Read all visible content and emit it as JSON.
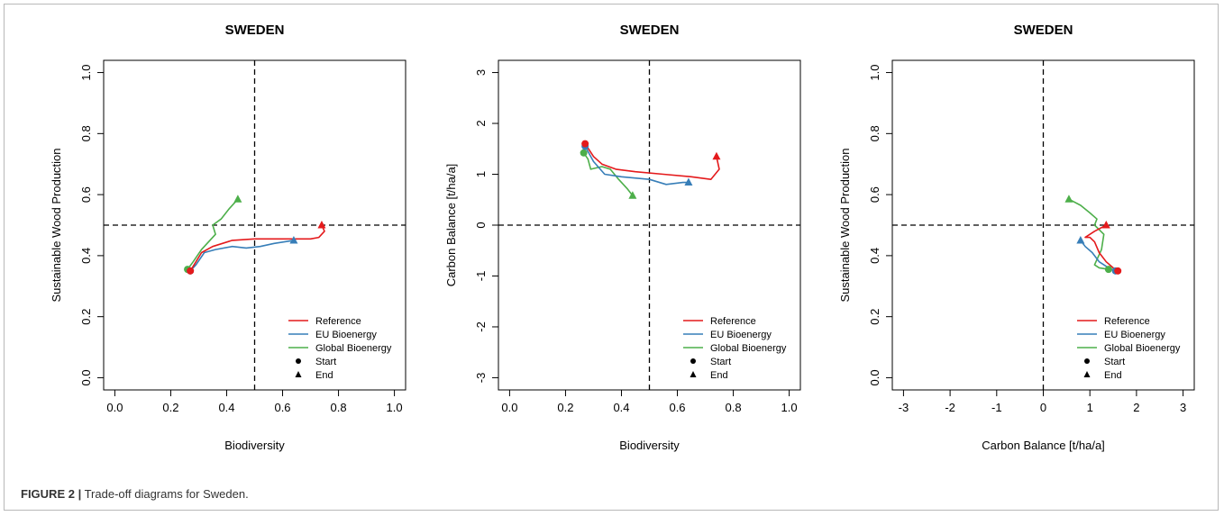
{
  "caption": {
    "label": "FIGURE 2 |",
    "text": "Trade-off diagrams for Sweden."
  },
  "colors": {
    "reference": "#e41a1c",
    "eu_bioenergy": "#377eb8",
    "global_bioenergy": "#4daf4a"
  },
  "legend": {
    "entries": [
      "Reference",
      "EU Bioenergy",
      "Global Bioenergy"
    ],
    "start": "Start",
    "end": "End"
  },
  "chart_data": [
    {
      "type": "line",
      "title": "SWEDEN",
      "xlabel": "Biodiversity",
      "ylabel": "Sustainable Wood Production",
      "xlim": [
        0.0,
        1.0
      ],
      "ylim": [
        0.0,
        1.0
      ],
      "xticks": [
        "0.0",
        "0.2",
        "0.4",
        "0.6",
        "0.8",
        "1.0"
      ],
      "yticks": [
        "0.0",
        "0.2",
        "0.4",
        "0.6",
        "0.8",
        "1.0"
      ],
      "vline": 0.5,
      "hline": 0.5,
      "legend_position": "bottom-right",
      "series": [
        {
          "name": "Reference",
          "color": "#e41a1c",
          "points": [
            [
              0.27,
              0.35
            ],
            [
              0.29,
              0.38
            ],
            [
              0.31,
              0.41
            ],
            [
              0.35,
              0.43
            ],
            [
              0.42,
              0.45
            ],
            [
              0.5,
              0.455
            ],
            [
              0.6,
              0.455
            ],
            [
              0.7,
              0.455
            ],
            [
              0.73,
              0.46
            ],
            [
              0.75,
              0.48
            ],
            [
              0.74,
              0.5
            ]
          ]
        },
        {
          "name": "EU Bioenergy",
          "color": "#377eb8",
          "points": [
            [
              0.27,
              0.35
            ],
            [
              0.29,
              0.37
            ],
            [
              0.32,
              0.41
            ],
            [
              0.36,
              0.42
            ],
            [
              0.42,
              0.43
            ],
            [
              0.47,
              0.425
            ],
            [
              0.52,
              0.43
            ],
            [
              0.57,
              0.44
            ],
            [
              0.64,
              0.45
            ]
          ]
        },
        {
          "name": "Global Bioenergy",
          "color": "#4daf4a",
          "points": [
            [
              0.26,
              0.355
            ],
            [
              0.28,
              0.38
            ],
            [
              0.31,
              0.42
            ],
            [
              0.33,
              0.44
            ],
            [
              0.36,
              0.47
            ],
            [
              0.35,
              0.5
            ],
            [
              0.38,
              0.52
            ],
            [
              0.41,
              0.555
            ],
            [
              0.44,
              0.585
            ]
          ]
        }
      ]
    },
    {
      "type": "line",
      "title": "SWEDEN",
      "xlabel": "Biodiversity",
      "ylabel": "Carbon Balance [t/ha/a]",
      "xlim": [
        0.0,
        1.0
      ],
      "ylim": [
        -3,
        3
      ],
      "xticks": [
        "0.0",
        "0.2",
        "0.4",
        "0.6",
        "0.8",
        "1.0"
      ],
      "yticks": [
        "-3",
        "-2",
        "-1",
        "0",
        "1",
        "2",
        "3"
      ],
      "vline": 0.5,
      "hline": 0,
      "legend_position": "bottom-right",
      "series": [
        {
          "name": "Reference",
          "color": "#e41a1c",
          "points": [
            [
              0.27,
              1.6
            ],
            [
              0.3,
              1.35
            ],
            [
              0.33,
              1.2
            ],
            [
              0.38,
              1.1
            ],
            [
              0.45,
              1.05
            ],
            [
              0.55,
              1.0
            ],
            [
              0.65,
              0.95
            ],
            [
              0.72,
              0.9
            ],
            [
              0.75,
              1.1
            ],
            [
              0.74,
              1.35
            ]
          ]
        },
        {
          "name": "EU Bioenergy",
          "color": "#377eb8",
          "points": [
            [
              0.27,
              1.55
            ],
            [
              0.3,
              1.25
            ],
            [
              0.34,
              1.0
            ],
            [
              0.4,
              0.95
            ],
            [
              0.5,
              0.9
            ],
            [
              0.56,
              0.8
            ],
            [
              0.62,
              0.84
            ],
            [
              0.64,
              0.84
            ]
          ]
        },
        {
          "name": "Global Bioenergy",
          "color": "#4daf4a",
          "points": [
            [
              0.265,
              1.42
            ],
            [
              0.28,
              1.3
            ],
            [
              0.29,
              1.1
            ],
            [
              0.33,
              1.15
            ],
            [
              0.36,
              1.1
            ],
            [
              0.39,
              0.9
            ],
            [
              0.42,
              0.72
            ],
            [
              0.44,
              0.58
            ]
          ]
        }
      ]
    },
    {
      "type": "line",
      "title": "SWEDEN",
      "xlabel": "Carbon Balance [t/ha/a]",
      "ylabel": "Sustainable Wood Production",
      "xlim": [
        -3,
        3
      ],
      "ylim": [
        0.0,
        1.0
      ],
      "xticks": [
        "-3",
        "-2",
        "-1",
        "0",
        "1",
        "2",
        "3"
      ],
      "yticks": [
        "0.0",
        "0.2",
        "0.4",
        "0.6",
        "0.8",
        "1.0"
      ],
      "vline": 0,
      "hline": 0.5,
      "legend_position": "bottom-right",
      "series": [
        {
          "name": "Reference",
          "color": "#e41a1c",
          "points": [
            [
              1.6,
              0.35
            ],
            [
              1.5,
              0.36
            ],
            [
              1.35,
              0.38
            ],
            [
              1.2,
              0.41
            ],
            [
              1.1,
              0.445
            ],
            [
              1.0,
              0.46
            ],
            [
              0.9,
              0.46
            ],
            [
              1.1,
              0.48
            ],
            [
              1.35,
              0.5
            ]
          ]
        },
        {
          "name": "EU Bioenergy",
          "color": "#377eb8",
          "points": [
            [
              1.55,
              0.35
            ],
            [
              1.4,
              0.36
            ],
            [
              1.2,
              0.38
            ],
            [
              1.05,
              0.41
            ],
            [
              0.9,
              0.43
            ],
            [
              0.8,
              0.45
            ]
          ]
        },
        {
          "name": "Global Bioenergy",
          "color": "#4daf4a",
          "points": [
            [
              1.4,
              0.355
            ],
            [
              1.2,
              0.36
            ],
            [
              1.1,
              0.37
            ],
            [
              1.25,
              0.42
            ],
            [
              1.3,
              0.47
            ],
            [
              1.1,
              0.5
            ],
            [
              1.15,
              0.52
            ],
            [
              1.0,
              0.54
            ],
            [
              0.8,
              0.565
            ],
            [
              0.55,
              0.585
            ]
          ]
        }
      ]
    }
  ]
}
